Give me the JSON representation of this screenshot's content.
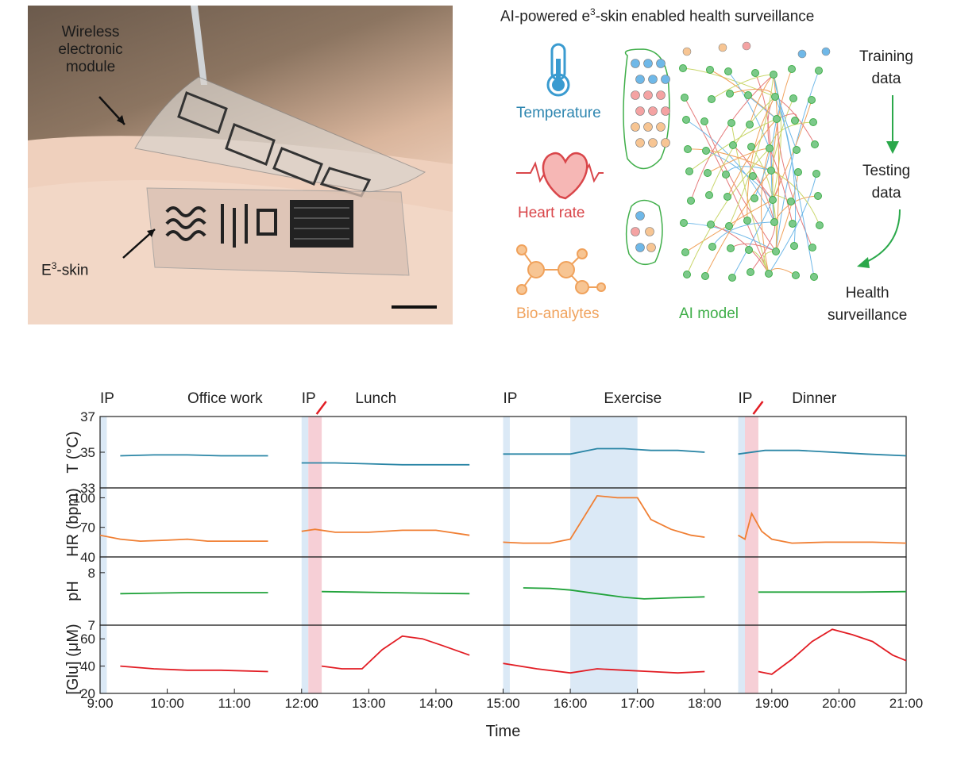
{
  "photo": {
    "label_module": "Wireless\nelectronic\nmodule",
    "label_skin": "E3-skin",
    "label_skin_sup": "3",
    "label_skin_base": "E",
    "label_skin_rest": "-skin"
  },
  "schematic": {
    "title_pre": "AI-powered e",
    "title_sup": "3",
    "title_post": "-skin enabled health surveillance",
    "inputs": [
      {
        "label": "Temperature",
        "color": "#2e86b0",
        "icon": "thermometer-icon"
      },
      {
        "label": "Heart rate",
        "color": "#d9464a",
        "icon": "heart-icon"
      },
      {
        "label": "Bio-analytes",
        "color": "#f0a25c",
        "icon": "molecule-icon"
      }
    ],
    "model_label": "AI model",
    "model_color": "#3fae49",
    "flow": [
      "Training\ndata",
      "Testing\ndata",
      "Health\nsurveillance"
    ]
  },
  "chart_data": {
    "type": "line",
    "xlabel": "Time",
    "x_ticks": [
      "9:00",
      "10:00",
      "11:00",
      "12:00",
      "13:00",
      "14:00",
      "15:00",
      "16:00",
      "17:00",
      "18:00",
      "19:00",
      "20:00",
      "21:00"
    ],
    "x_range": [
      9.0,
      21.0
    ],
    "events": [
      {
        "label": "IP",
        "at": 9.0
      },
      {
        "label": "Office work",
        "at": 10.3,
        "icon": "laptop-icon"
      },
      {
        "label": "IP",
        "at": 12.0
      },
      {
        "label": "Lunch",
        "at": 12.8,
        "icon": "food-bowl-icon"
      },
      {
        "label": "IP",
        "at": 15.0
      },
      {
        "label": "Exercise",
        "at": 16.5,
        "icon": "bicycle-icon"
      },
      {
        "label": "IP",
        "at": 18.5
      },
      {
        "label": "Dinner",
        "at": 19.3,
        "icon": "pasta-plate-icon"
      }
    ],
    "shaded_blue": [
      [
        9.0,
        9.1
      ],
      [
        12.0,
        12.1
      ],
      [
        15.0,
        15.1
      ],
      [
        16.0,
        17.0
      ],
      [
        18.5,
        18.6
      ]
    ],
    "shaded_pink": [
      [
        12.1,
        12.3
      ],
      [
        18.6,
        18.8
      ]
    ],
    "panels": [
      {
        "ylabel": "T (°C)",
        "ylim": [
          33,
          37
        ],
        "yticks": [
          "37",
          "35",
          "33"
        ],
        "color": "#2b86a6",
        "segments": [
          {
            "x": [
              9.3,
              9.8,
              10.3,
              10.8,
              11.5
            ],
            "y": [
              34.8,
              34.85,
              34.85,
              34.8,
              34.8
            ]
          },
          {
            "x": [
              12.0,
              12.5,
              13.0,
              13.5,
              14.0,
              14.5
            ],
            "y": [
              34.4,
              34.4,
              34.35,
              34.3,
              34.3,
              34.3
            ]
          },
          {
            "x": [
              15.0,
              15.5,
              16.0,
              16.4,
              16.8,
              17.2,
              17.6,
              18.0
            ],
            "y": [
              34.9,
              34.9,
              34.9,
              35.2,
              35.2,
              35.1,
              35.1,
              35.0
            ]
          },
          {
            "x": [
              18.5,
              18.9,
              19.4,
              19.9,
              20.4,
              21.0
            ],
            "y": [
              34.9,
              35.1,
              35.1,
              35.0,
              34.9,
              34.8
            ]
          }
        ]
      },
      {
        "ylabel": "HR (bpm)",
        "ylim": [
          40,
          110
        ],
        "yticks": [
          "100",
          "70",
          "40"
        ],
        "color": "#f07f33",
        "segments": [
          {
            "x": [
              9.0,
              9.3,
              9.6,
              10.0,
              10.3,
              10.6,
              11.0,
              11.5
            ],
            "y": [
              62,
              58,
              56,
              57,
              58,
              56,
              56,
              56
            ]
          },
          {
            "x": [
              12.0,
              12.2,
              12.5,
              13.0,
              13.5,
              14.0,
              14.5
            ],
            "y": [
              66,
              68,
              65,
              65,
              67,
              67,
              62
            ]
          },
          {
            "x": [
              15.0,
              15.3,
              15.7,
              16.0,
              16.2,
              16.4,
              16.7,
              17.0,
              17.2,
              17.5,
              17.8,
              18.0
            ],
            "y": [
              55,
              54,
              54,
              58,
              80,
              102,
              100,
              100,
              78,
              68,
              62,
              60
            ]
          },
          {
            "x": [
              18.5,
              18.6,
              18.7,
              18.85,
              19.0,
              19.3,
              19.8,
              20.5,
              21.0
            ],
            "y": [
              62,
              58,
              84,
              66,
              58,
              54,
              55,
              55,
              54
            ]
          }
        ]
      },
      {
        "ylabel": "pH",
        "ylim": [
          7,
          8.3
        ],
        "yticks": [
          "8",
          "7"
        ],
        "color": "#21a33b",
        "segments": [
          {
            "x": [
              9.3,
              9.8,
              10.3,
              10.8,
              11.5
            ],
            "y": [
              7.6,
              7.61,
              7.62,
              7.62,
              7.62
            ]
          },
          {
            "x": [
              12.3,
              12.8,
              13.3,
              13.8,
              14.5
            ],
            "y": [
              7.64,
              7.63,
              7.62,
              7.61,
              7.6
            ]
          },
          {
            "x": [
              15.3,
              15.7,
              16.0,
              16.4,
              16.8,
              17.1,
              17.5,
              18.0
            ],
            "y": [
              7.71,
              7.7,
              7.67,
              7.6,
              7.53,
              7.5,
              7.52,
              7.54
            ]
          },
          {
            "x": [
              18.8,
              19.3,
              19.8,
              20.3,
              21.0
            ],
            "y": [
              7.63,
              7.63,
              7.63,
              7.63,
              7.64
            ]
          }
        ]
      },
      {
        "ylabel": "[Glu] (μM)",
        "ylim": [
          20,
          70
        ],
        "yticks": [
          "60",
          "40",
          "20"
        ],
        "color": "#e21d24",
        "segments": [
          {
            "x": [
              9.3,
              9.8,
              10.3,
              10.8,
              11.5
            ],
            "y": [
              40,
              38,
              37,
              37,
              36
            ]
          },
          {
            "x": [
              12.3,
              12.6,
              12.9,
              13.2,
              13.5,
              13.8,
              14.1,
              14.5
            ],
            "y": [
              40,
              38,
              38,
              52,
              62,
              60,
              55,
              48
            ]
          },
          {
            "x": [
              15.0,
              15.5,
              16.0,
              16.4,
              16.8,
              17.2,
              17.6,
              18.0
            ],
            "y": [
              42,
              38,
              35,
              38,
              37,
              36,
              35,
              36
            ]
          },
          {
            "x": [
              18.8,
              19.0,
              19.3,
              19.6,
              19.9,
              20.2,
              20.5,
              20.8,
              21.0
            ],
            "y": [
              36,
              34,
              45,
              58,
              67,
              63,
              58,
              48,
              44
            ]
          }
        ]
      }
    ]
  }
}
